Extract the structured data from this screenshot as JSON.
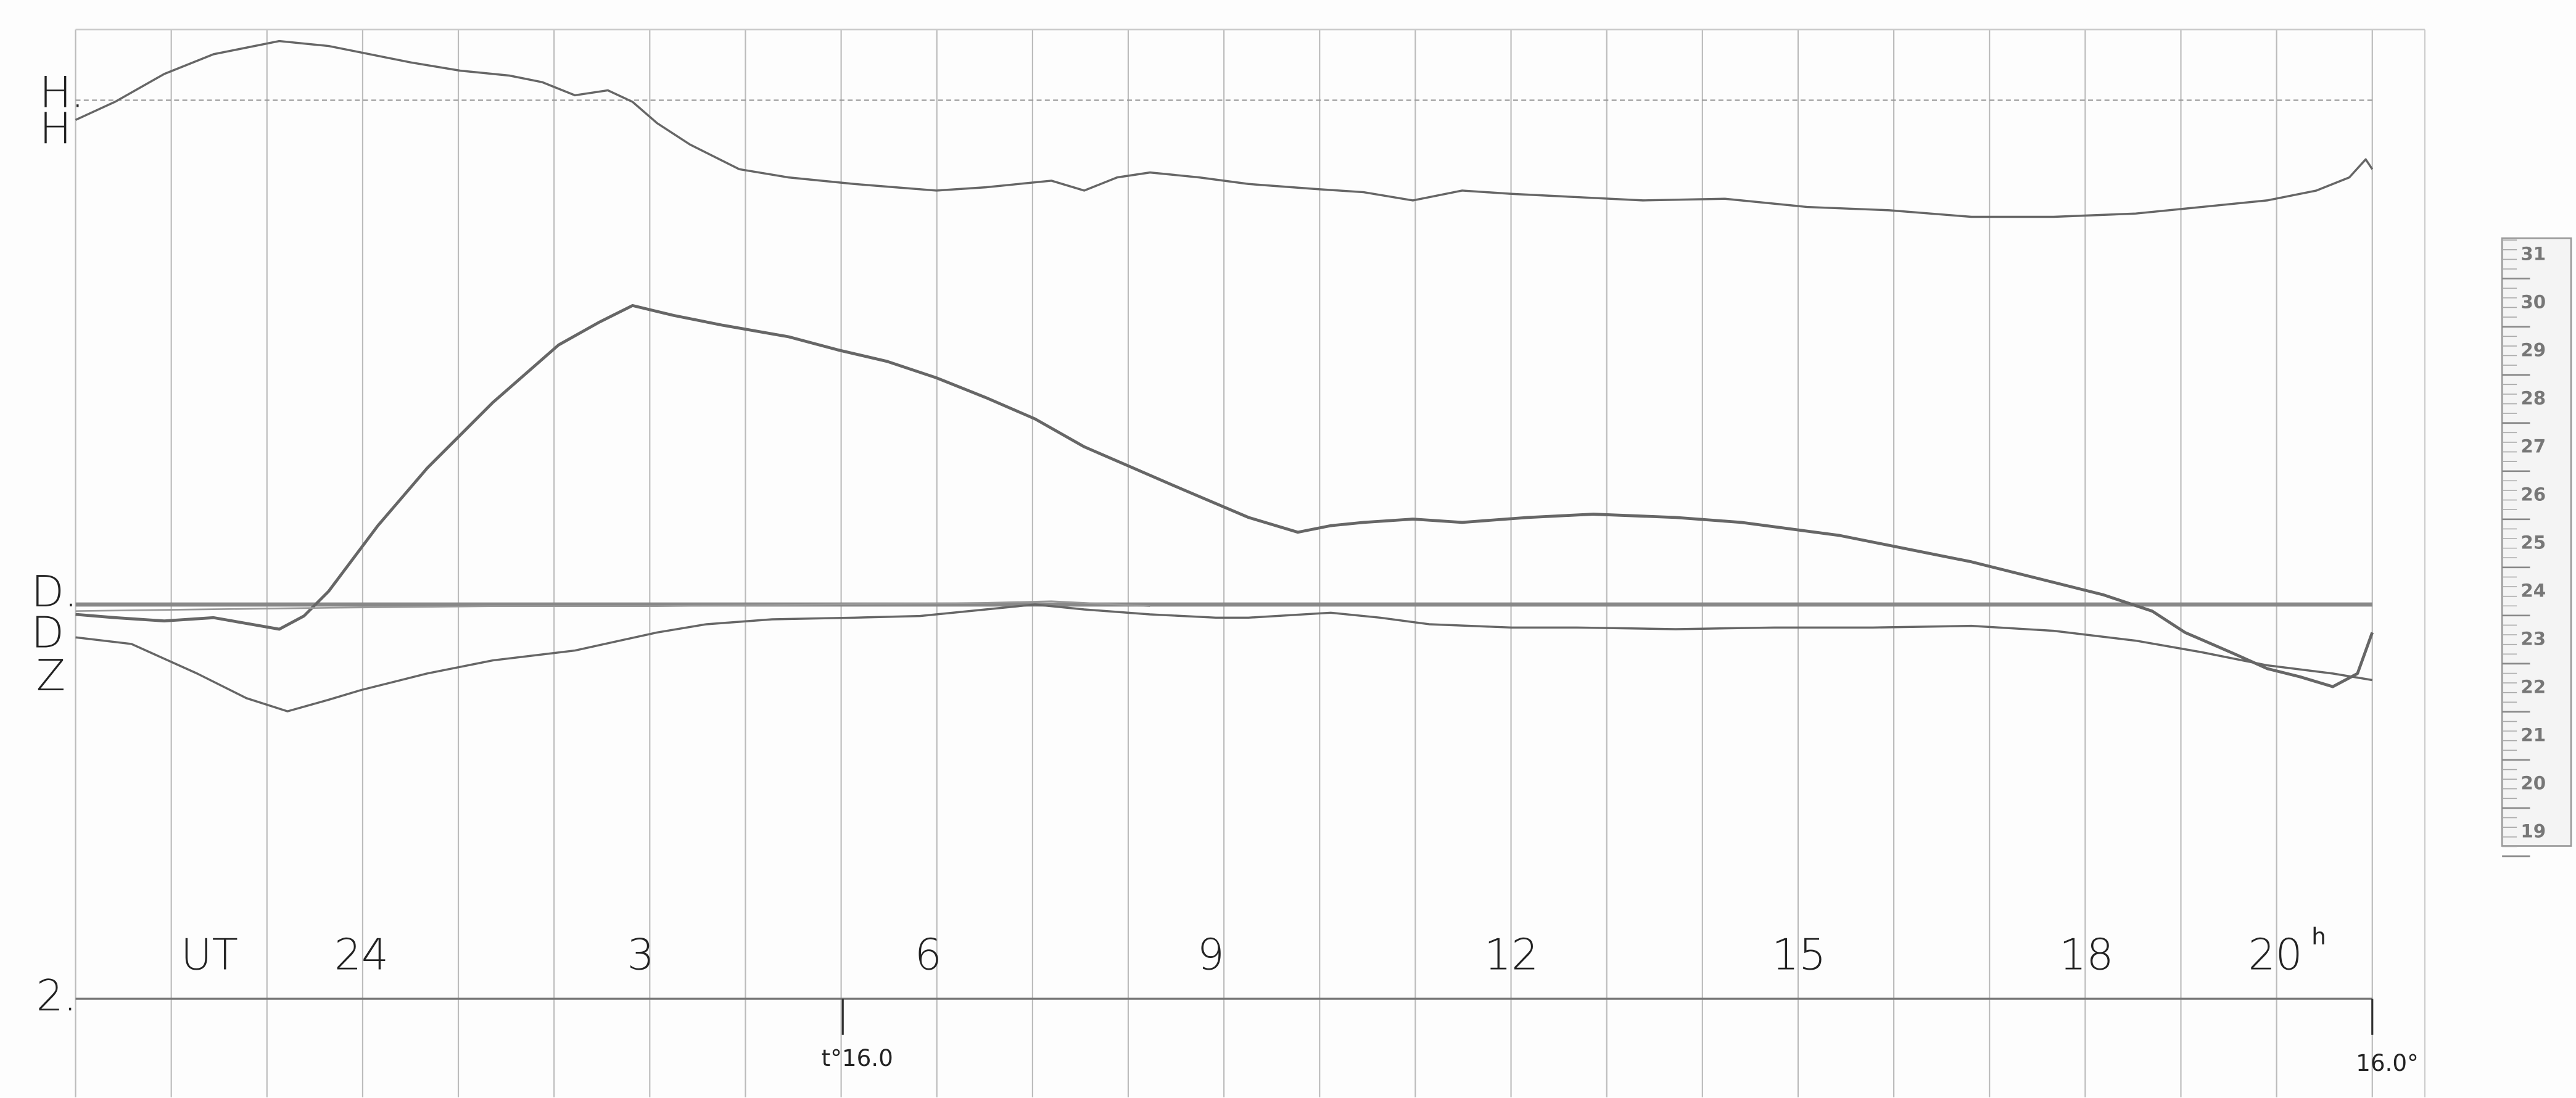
{
  "trace_labels": {
    "h_base": "H.",
    "h": "H",
    "d_base": "D.",
    "d": "D",
    "z": "Z",
    "z_base": "2."
  },
  "time_axis": {
    "label": "UT",
    "hours": [
      "24",
      "3",
      "6",
      "9",
      "12",
      "15",
      "18",
      "20"
    ],
    "unit": "h"
  },
  "temperature": {
    "start": "t°16.0",
    "end": "16.0°"
  },
  "scale": {
    "ticks": [
      "31",
      "30",
      "29",
      "28",
      "27",
      "26",
      "25",
      "24",
      "23",
      "22",
      "21",
      "20",
      "19"
    ]
  }
}
